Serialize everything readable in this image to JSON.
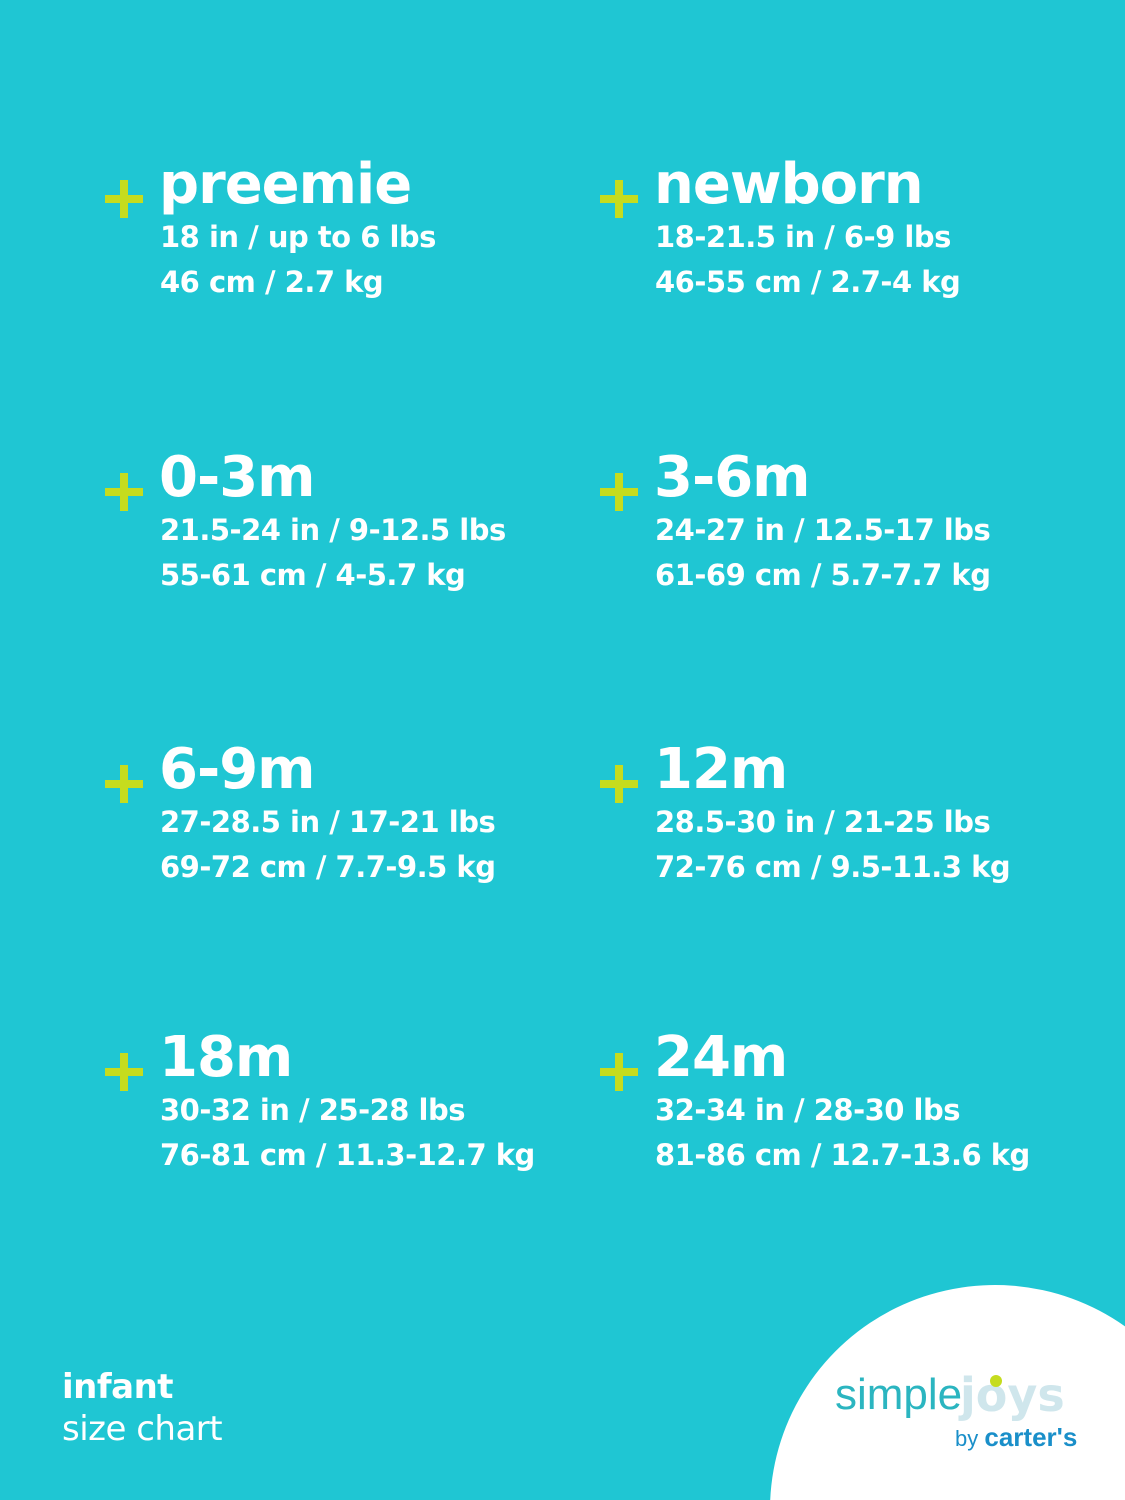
{
  "sizes": [
    {
      "name": "preemie",
      "imperial": "18 in / up to 6 lbs",
      "metric": "46 cm / 2.7 kg"
    },
    {
      "name": "newborn",
      "imperial": "18-21.5 in / 6-9 lbs",
      "metric": "46-55 cm / 2.7-4 kg"
    },
    {
      "name": "0-3m",
      "imperial": "21.5-24 in / 9-12.5 lbs",
      "metric": "55-61 cm / 4-5.7 kg"
    },
    {
      "name": "3-6m",
      "imperial": "24-27 in / 12.5-17 lbs",
      "metric": "61-69 cm / 5.7-7.7 kg"
    },
    {
      "name": "6-9m",
      "imperial": "27-28.5 in / 17-21 lbs",
      "metric": "69-72 cm / 7.7-9.5 kg"
    },
    {
      "name": "12m",
      "imperial": "28.5-30 in / 21-25 lbs",
      "metric": "72-76 cm / 9.5-11.3 kg"
    },
    {
      "name": "18m",
      "imperial": "30-32 in / 25-28 lbs",
      "metric": "76-81 cm / 11.3-12.7 kg"
    },
    {
      "name": "24m",
      "imperial": "32-34 in / 28-30 lbs",
      "metric": "81-86 cm / 12.7-13.6 kg"
    }
  ],
  "footer": {
    "line1": "infant",
    "line2": "size chart"
  },
  "logo": {
    "simple": "simple",
    "joys": "joys",
    "by": "by",
    "brand": "carter's"
  },
  "colors": {
    "background": "#1fc6d3",
    "plus": "#c5dc1e",
    "text": "#ffffff"
  }
}
